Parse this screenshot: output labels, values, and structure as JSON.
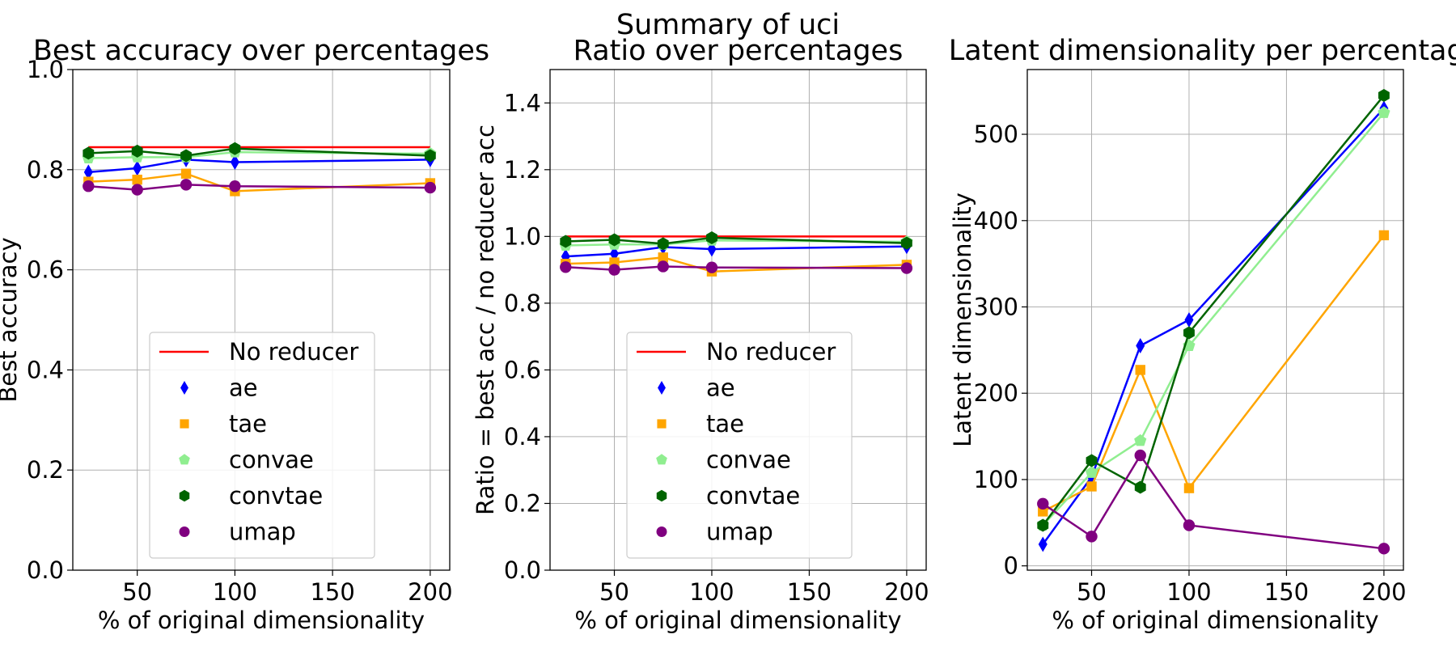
{
  "suptitle": "Summary of uci",
  "chart_data": [
    {
      "type": "line",
      "title": "Best accuracy over percentages",
      "xlabel": "% of original dimensionality",
      "ylabel": "Best accuracy",
      "xlim": [
        17,
        210
      ],
      "ylim": [
        0,
        1.0
      ],
      "xticks": [
        50,
        100,
        150,
        200
      ],
      "yticks": [
        0.0,
        0.2,
        0.4,
        0.6,
        0.8,
        1.0
      ],
      "grid": true,
      "legend_position": "lower-center",
      "x": [
        25,
        50,
        75,
        100,
        200
      ],
      "reference_line": {
        "name": "No reducer",
        "value": 0.845,
        "x_range": [
          25,
          200
        ],
        "color": "#ff0000"
      },
      "series": [
        {
          "name": "ae",
          "color": "#0000ff",
          "marker": "diamond",
          "values": [
            0.795,
            0.803,
            0.82,
            0.815,
            0.82
          ]
        },
        {
          "name": "tae",
          "color": "#ffa500",
          "marker": "square",
          "values": [
            0.776,
            0.78,
            0.792,
            0.757,
            0.773
          ]
        },
        {
          "name": "convae",
          "color": "#90ee90",
          "marker": "pentagon",
          "values": [
            0.823,
            0.825,
            0.825,
            0.835,
            0.832
          ]
        },
        {
          "name": "convtae",
          "color": "#006400",
          "marker": "hexagon",
          "values": [
            0.833,
            0.837,
            0.828,
            0.842,
            0.828
          ]
        },
        {
          "name": "umap",
          "color": "#800080",
          "marker": "circle",
          "values": [
            0.767,
            0.76,
            0.77,
            0.767,
            0.764
          ]
        }
      ]
    },
    {
      "type": "line",
      "title": "Ratio over percentages",
      "xlabel": "% of original dimensionality",
      "ylabel": "Ratio = best acc / no reducer acc",
      "xlim": [
        17,
        210
      ],
      "ylim": [
        0,
        1.5
      ],
      "xticks": [
        50,
        100,
        150,
        200
      ],
      "yticks": [
        0.0,
        0.2,
        0.4,
        0.6,
        0.8,
        1.0,
        1.2,
        1.4
      ],
      "grid": true,
      "legend_position": "lower-center",
      "x": [
        25,
        50,
        75,
        100,
        200
      ],
      "reference_line": {
        "name": "No reducer",
        "value": 1.0,
        "x_range": [
          25,
          200
        ],
        "color": "#ff0000"
      },
      "series": [
        {
          "name": "ae",
          "color": "#0000ff",
          "marker": "diamond",
          "values": [
            0.94,
            0.948,
            0.968,
            0.962,
            0.97
          ]
        },
        {
          "name": "tae",
          "color": "#ffa500",
          "marker": "square",
          "values": [
            0.918,
            0.922,
            0.937,
            0.895,
            0.915
          ]
        },
        {
          "name": "convae",
          "color": "#90ee90",
          "marker": "pentagon",
          "values": [
            0.973,
            0.976,
            0.976,
            0.988,
            0.984
          ]
        },
        {
          "name": "convtae",
          "color": "#006400",
          "marker": "hexagon",
          "values": [
            0.985,
            0.99,
            0.978,
            0.996,
            0.98
          ]
        },
        {
          "name": "umap",
          "color": "#800080",
          "marker": "circle",
          "values": [
            0.908,
            0.9,
            0.91,
            0.907,
            0.905
          ]
        }
      ]
    },
    {
      "type": "line",
      "title": "Latent dimensionality per percentage",
      "xlabel": "% of original dimensionality",
      "ylabel": "Latent dimensionality",
      "xlim": [
        17,
        210
      ],
      "ylim": [
        -5,
        575
      ],
      "xticks": [
        50,
        100,
        150,
        200
      ],
      "yticks": [
        0,
        100,
        200,
        300,
        400,
        500
      ],
      "grid": true,
      "x": [
        25,
        50,
        75,
        100,
        200
      ],
      "series": [
        {
          "name": "ae",
          "color": "#0000ff",
          "marker": "diamond",
          "values": [
            25,
            103,
            255,
            285,
            530
          ]
        },
        {
          "name": "tae",
          "color": "#ffa500",
          "marker": "square",
          "values": [
            63,
            92,
            227,
            90,
            383
          ]
        },
        {
          "name": "convae",
          "color": "#90ee90",
          "marker": "pentagon",
          "values": [
            47,
            108,
            145,
            255,
            525
          ]
        },
        {
          "name": "convtae",
          "color": "#006400",
          "marker": "hexagon",
          "values": [
            47,
            122,
            91,
            270,
            545
          ]
        },
        {
          "name": "umap",
          "color": "#800080",
          "marker": "circle",
          "values": [
            72,
            34,
            128,
            47,
            20
          ]
        }
      ]
    }
  ]
}
